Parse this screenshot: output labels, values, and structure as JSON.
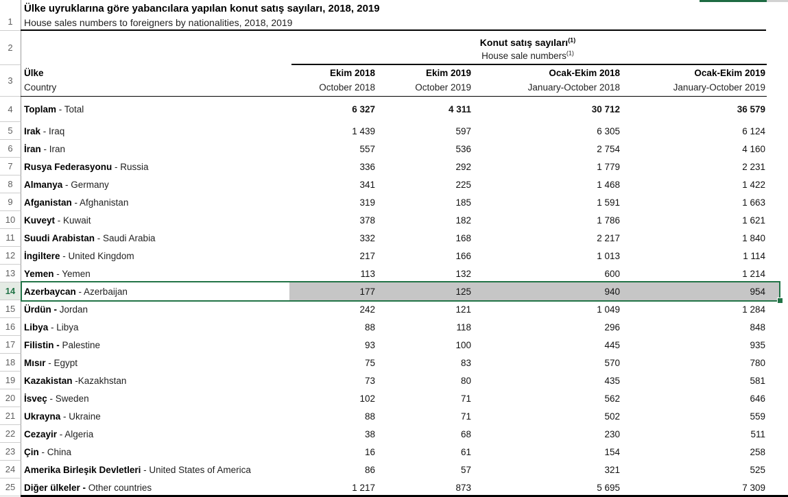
{
  "title": {
    "tr": "Ülke uyruklarına göre yabancılara yapılan konut satış sayıları, 2018, 2019",
    "en": "House sales numbers to foreigners by nationalities, 2018, 2019"
  },
  "group_header": {
    "tr": "Konut satış sayıları",
    "en": "House sale numbers",
    "footnote_mark": "(1)"
  },
  "columns": {
    "country": {
      "tr": "Ülke",
      "en": "Country"
    },
    "periods": [
      {
        "tr": "Ekim 2018",
        "en": "October 2018"
      },
      {
        "tr": "Ekim 2019",
        "en": "October 2019"
      },
      {
        "tr": "Ocak-Ekim 2018",
        "en": "January-October 2018"
      },
      {
        "tr": "Ocak-Ekim 2019",
        "en": "January-October 2019"
      }
    ]
  },
  "header_row_nums": [
    "1",
    "2",
    "3"
  ],
  "rows": [
    {
      "num": "4",
      "bold": "Toplam",
      "rest": " - Total",
      "values": [
        "6 327",
        "4 311",
        "30 712",
        "36 579"
      ],
      "total": true
    },
    {
      "num": "5",
      "bold": "Irak",
      "rest": " - Iraq",
      "values": [
        "1 439",
        "597",
        "6 305",
        "6 124"
      ]
    },
    {
      "num": "6",
      "bold": "İran",
      "rest": " - Iran",
      "values": [
        "557",
        "536",
        "2 754",
        "4 160"
      ]
    },
    {
      "num": "7",
      "bold": "Rusya Federasyonu",
      "rest": " - Russia",
      "values": [
        "336",
        "292",
        "1 779",
        "2 231"
      ]
    },
    {
      "num": "8",
      "bold": "Almanya",
      "rest": " - Germany",
      "values": [
        "341",
        "225",
        "1 468",
        "1 422"
      ]
    },
    {
      "num": "9",
      "bold": "Afganistan",
      "rest": " - Afghanistan",
      "values": [
        "319",
        "185",
        "1 591",
        "1 663"
      ]
    },
    {
      "num": "10",
      "bold": "Kuveyt",
      "rest": " - Kuwait",
      "values": [
        "378",
        "182",
        "1 786",
        "1 621"
      ]
    },
    {
      "num": "11",
      "bold": "Suudi Arabistan",
      "rest": " - Saudi Arabia",
      "values": [
        "332",
        "168",
        "2 217",
        "1 840"
      ]
    },
    {
      "num": "12",
      "bold": "İngiltere",
      "rest": " - United Kingdom",
      "values": [
        "217",
        "166",
        "1 013",
        "1 114"
      ]
    },
    {
      "num": "13",
      "bold": "Yemen",
      "rest": " - Yemen",
      "values": [
        "113",
        "132",
        "600",
        "1 214"
      ]
    },
    {
      "num": "14",
      "bold": "Azerbaycan",
      "rest": " - Azerbaijan",
      "values": [
        "177",
        "125",
        "940",
        "954"
      ],
      "selected": true
    },
    {
      "num": "15",
      "bold": "Ürdün -",
      "rest": " Jordan",
      "values": [
        "242",
        "121",
        "1 049",
        "1 284"
      ]
    },
    {
      "num": "16",
      "bold": "Libya",
      "rest": " - Libya",
      "values": [
        "88",
        "118",
        "296",
        "848"
      ]
    },
    {
      "num": "17",
      "bold": "Filistin -",
      "rest": " Palestine",
      "values": [
        "93",
        "100",
        "445",
        "935"
      ]
    },
    {
      "num": "18",
      "bold": "Mısır",
      "rest": " - Egypt",
      "values": [
        "75",
        "83",
        "570",
        "780"
      ]
    },
    {
      "num": "19",
      "bold": "Kazakistan",
      "rest": " -Kazakhstan",
      "values": [
        "73",
        "80",
        "435",
        "581"
      ]
    },
    {
      "num": "20",
      "bold": "İsveç",
      "rest": " - Sweden",
      "values": [
        "102",
        "71",
        "562",
        "646"
      ]
    },
    {
      "num": "21",
      "bold": "Ukrayna",
      "rest": " - Ukraine",
      "values": [
        "88",
        "71",
        "502",
        "559"
      ]
    },
    {
      "num": "22",
      "bold": "Cezayir",
      "rest": " - Algeria",
      "values": [
        "38",
        "68",
        "230",
        "511"
      ]
    },
    {
      "num": "23",
      "bold": "Çin",
      "rest": " - China",
      "values": [
        "16",
        "61",
        "154",
        "258"
      ]
    },
    {
      "num": "24",
      "bold": "Amerika Birleşik Devletleri",
      "rest": " - United States of America",
      "values": [
        "86",
        "57",
        "321",
        "525"
      ]
    },
    {
      "num": "25",
      "bold": "Diğer ülkeler -",
      "rest": " Other countries",
      "values": [
        "1 217",
        "873",
        "5 695",
        "7 309"
      ]
    }
  ],
  "selection": {
    "row_num": "14",
    "active_cell": "Azerbaycan - Azerbaijan"
  },
  "colors": {
    "selection_border": "#217346",
    "selection_fill": "#c6c6c6",
    "selection_gutter_bg": "#e4ebe4",
    "selection_gutter_text": "#217346",
    "gutter_border": "#9b9b9b",
    "gutter_text": "#5f5f5f",
    "rule_line": "#000000",
    "top_strip_green": "#1e6b43",
    "top_strip_gray": "#d2d2d2"
  }
}
